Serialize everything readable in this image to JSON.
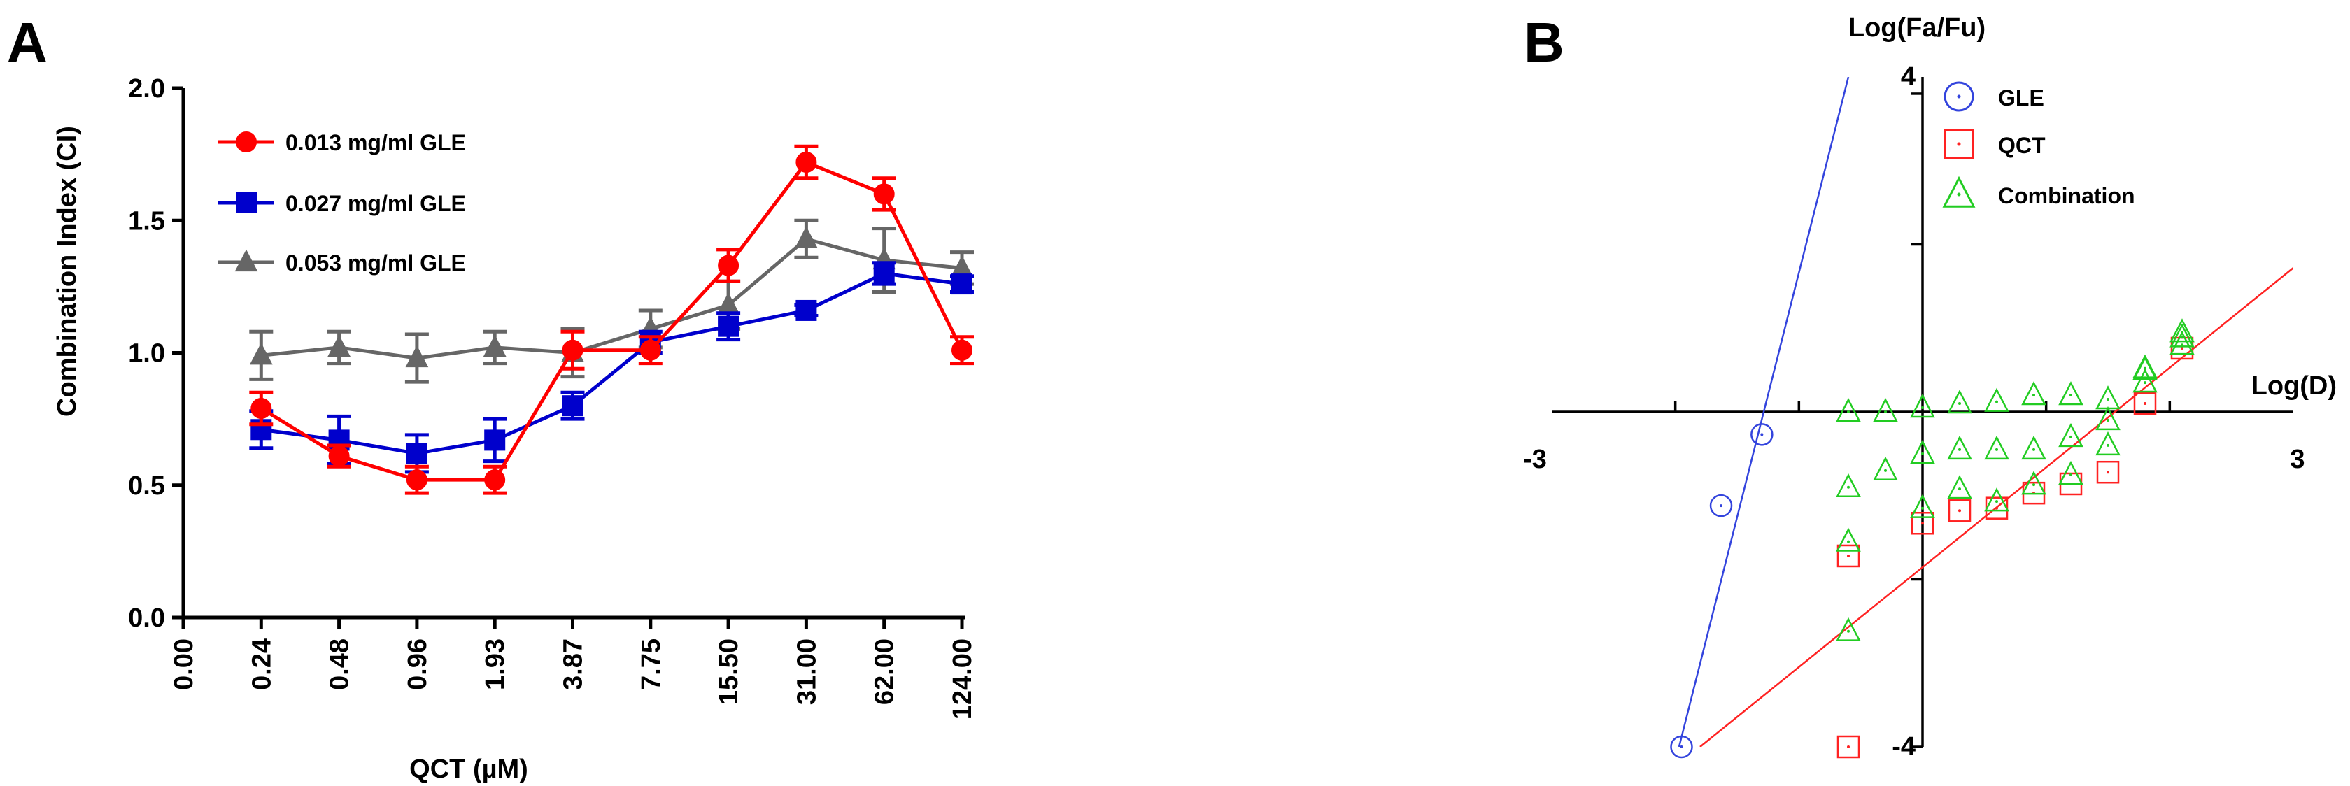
{
  "chart_data": [
    {
      "type": "line",
      "panel_label": "A",
      "xlabel": "QCT (µM)",
      "ylabel": "Combination Index (CI)",
      "categories": [
        "0.00",
        "0.24",
        "0.48",
        "0.96",
        "1.93",
        "3.87",
        "7.75",
        "15.50",
        "31.00",
        "62.00",
        "124.00"
      ],
      "ylim": [
        0,
        2.0
      ],
      "yticks": [
        "0.0",
        "0.5",
        "1.0",
        "1.5",
        "2.0"
      ],
      "legend_position": "top-left",
      "series": [
        {
          "name": "0.013 mg/ml GLE",
          "color": "#ff0000",
          "marker": "circle",
          "values": [
            null,
            0.79,
            0.61,
            0.52,
            0.52,
            1.01,
            1.01,
            1.33,
            1.72,
            1.6,
            1.01
          ],
          "errors": [
            null,
            0.06,
            0.04,
            0.05,
            0.05,
            0.07,
            0.05,
            0.06,
            0.06,
            0.06,
            0.05
          ]
        },
        {
          "name": "0.027 mg/ml GLE",
          "color": "#0000cc",
          "marker": "square",
          "values": [
            null,
            0.71,
            0.67,
            0.62,
            0.67,
            0.8,
            1.04,
            1.1,
            1.16,
            1.3,
            1.26
          ],
          "errors": [
            null,
            0.07,
            0.09,
            0.07,
            0.08,
            0.05,
            0.04,
            0.05,
            0.02,
            0.04,
            0.03
          ]
        },
        {
          "name": "0.053 mg/ml GLE",
          "color": "#666666",
          "marker": "triangle",
          "values": [
            null,
            0.99,
            1.02,
            0.98,
            1.02,
            1.0,
            1.09,
            1.18,
            1.43,
            1.35,
            1.32
          ],
          "errors": [
            null,
            0.09,
            0.06,
            0.09,
            0.06,
            0.09,
            0.07,
            0.09,
            0.07,
            0.12,
            0.06
          ]
        }
      ]
    },
    {
      "type": "scatter",
      "panel_label": "B",
      "xlabel": "Log(D)",
      "ylabel": "Log(Fa/Fu)",
      "xlim": [
        -3,
        3
      ],
      "ylim": [
        -4,
        4
      ],
      "xtick_labels": [
        "-3",
        "3"
      ],
      "ytick_labels": [
        "4",
        "-4"
      ],
      "legend_position": "top-right",
      "series": [
        {
          "name": "GLE",
          "color": "#3344dd",
          "marker": "circle",
          "points": [
            [
              -1.95,
              -4.0
            ],
            [
              -1.63,
              -1.12
            ],
            [
              -1.3,
              -0.27
            ]
          ],
          "fit_line": [
            [
              -1.97,
              -4.0
            ],
            [
              -0.6,
              4.0
            ]
          ]
        },
        {
          "name": "QCT",
          "color": "#ff2222",
          "marker": "square",
          "points": [
            [
              -0.6,
              -4.0
            ],
            [
              -0.6,
              -1.72
            ],
            [
              0.0,
              -1.33
            ],
            [
              0.3,
              -1.18
            ],
            [
              0.6,
              -1.15
            ],
            [
              0.9,
              -0.97
            ],
            [
              1.2,
              -0.86
            ],
            [
              1.5,
              -0.72
            ],
            [
              1.8,
              0.1
            ],
            [
              2.1,
              0.76
            ]
          ],
          "fit_line": [
            [
              -1.8,
              -4.0
            ],
            [
              3.0,
              1.72
            ]
          ]
        },
        {
          "name": "Combination",
          "color": "#22cc22",
          "marker": "triangle",
          "points": [
            [
              -0.6,
              0.0
            ],
            [
              -0.3,
              0.0
            ],
            [
              0.0,
              0.05
            ],
            [
              0.3,
              0.1
            ],
            [
              0.6,
              0.12
            ],
            [
              0.9,
              0.2
            ],
            [
              1.2,
              0.2
            ],
            [
              1.5,
              0.15
            ],
            [
              1.8,
              0.52
            ],
            [
              2.1,
              0.89
            ],
            [
              -0.6,
              -0.9
            ],
            [
              -0.3,
              -0.7
            ],
            [
              0.0,
              -0.5
            ],
            [
              0.3,
              -0.45
            ],
            [
              0.6,
              -0.45
            ],
            [
              0.9,
              -0.45
            ],
            [
              1.2,
              -0.3
            ],
            [
              1.5,
              -0.1
            ],
            [
              1.8,
              0.35
            ],
            [
              2.1,
              0.8
            ],
            [
              -0.6,
              -2.62
            ],
            [
              -0.6,
              -1.55
            ],
            [
              0.0,
              -1.15
            ],
            [
              0.3,
              -0.92
            ],
            [
              0.6,
              -1.07
            ],
            [
              0.9,
              -0.87
            ],
            [
              1.2,
              -0.75
            ],
            [
              1.5,
              -0.4
            ],
            [
              1.8,
              0.5
            ],
            [
              2.1,
              0.95
            ]
          ]
        }
      ]
    }
  ]
}
